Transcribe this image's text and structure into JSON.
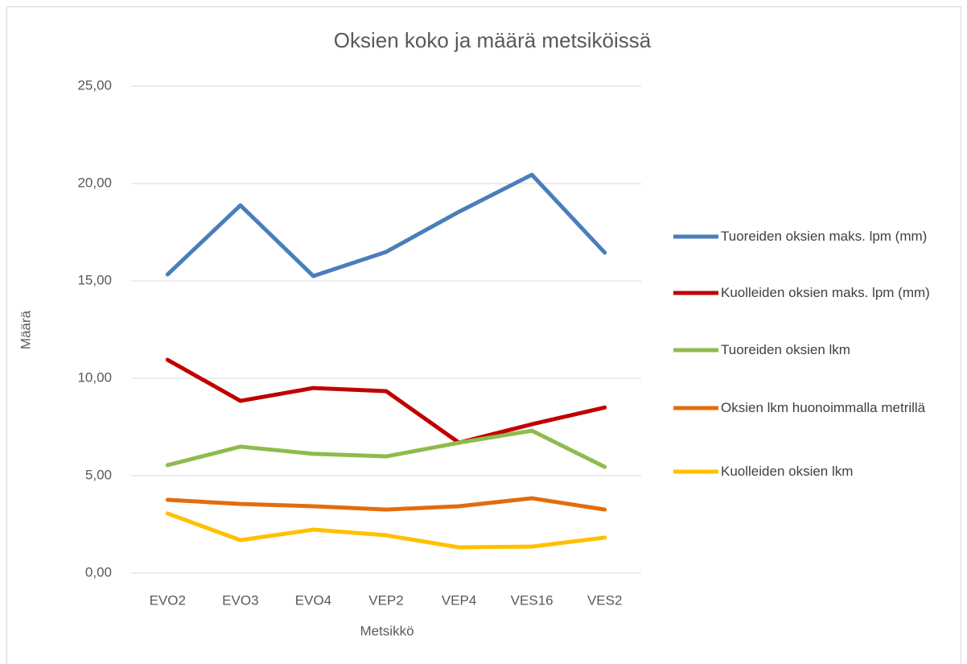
{
  "chart_data": {
    "type": "line",
    "title": "Oksien koko ja määrä metsiköissä",
    "x_label": "Metsikkö",
    "y_label": "Määrä",
    "categories": [
      "EVO2",
      "EVO3",
      "EVO4",
      "VEP2",
      "VEP4",
      "VES16",
      "VES2"
    ],
    "series": [
      {
        "name": "Tuoreiden oksien maks. lpm (mm)",
        "color": "#4a7ebb",
        "values": [
          15.33,
          18.88,
          15.25,
          16.49,
          18.55,
          20.45,
          16.45
        ]
      },
      {
        "name": "Kuolleiden oksien maks. lpm (mm)",
        "color": "#c00000",
        "values": [
          10.95,
          8.84,
          9.5,
          9.34,
          6.69,
          7.64,
          8.5
        ]
      },
      {
        "name": "Tuoreiden oksien lkm",
        "color": "#8fbb4e",
        "values": [
          5.54,
          6.49,
          6.12,
          5.99,
          6.69,
          7.31,
          5.45
        ]
      },
      {
        "name": "Oksien lkm huonoimmalla metrillä",
        "color": "#e46c0a",
        "values": [
          3.76,
          3.55,
          3.43,
          3.26,
          3.43,
          3.84,
          3.26
        ]
      },
      {
        "name": "Kuolleiden oksien lkm",
        "color": "#ffc000",
        "values": [
          3.06,
          1.69,
          2.23,
          1.94,
          1.32,
          1.36,
          1.82
        ]
      }
    ],
    "ylim": [
      0,
      25
    ],
    "yticks": [
      {
        "value": 0,
        "label": "0,00"
      },
      {
        "value": 5,
        "label": "5,00"
      },
      {
        "value": 10,
        "label": "10,00"
      },
      {
        "value": 15,
        "label": "15,00"
      },
      {
        "value": 20,
        "label": "20,00"
      },
      {
        "value": 25,
        "label": "25,00"
      }
    ],
    "grid": true,
    "legend": "right"
  }
}
